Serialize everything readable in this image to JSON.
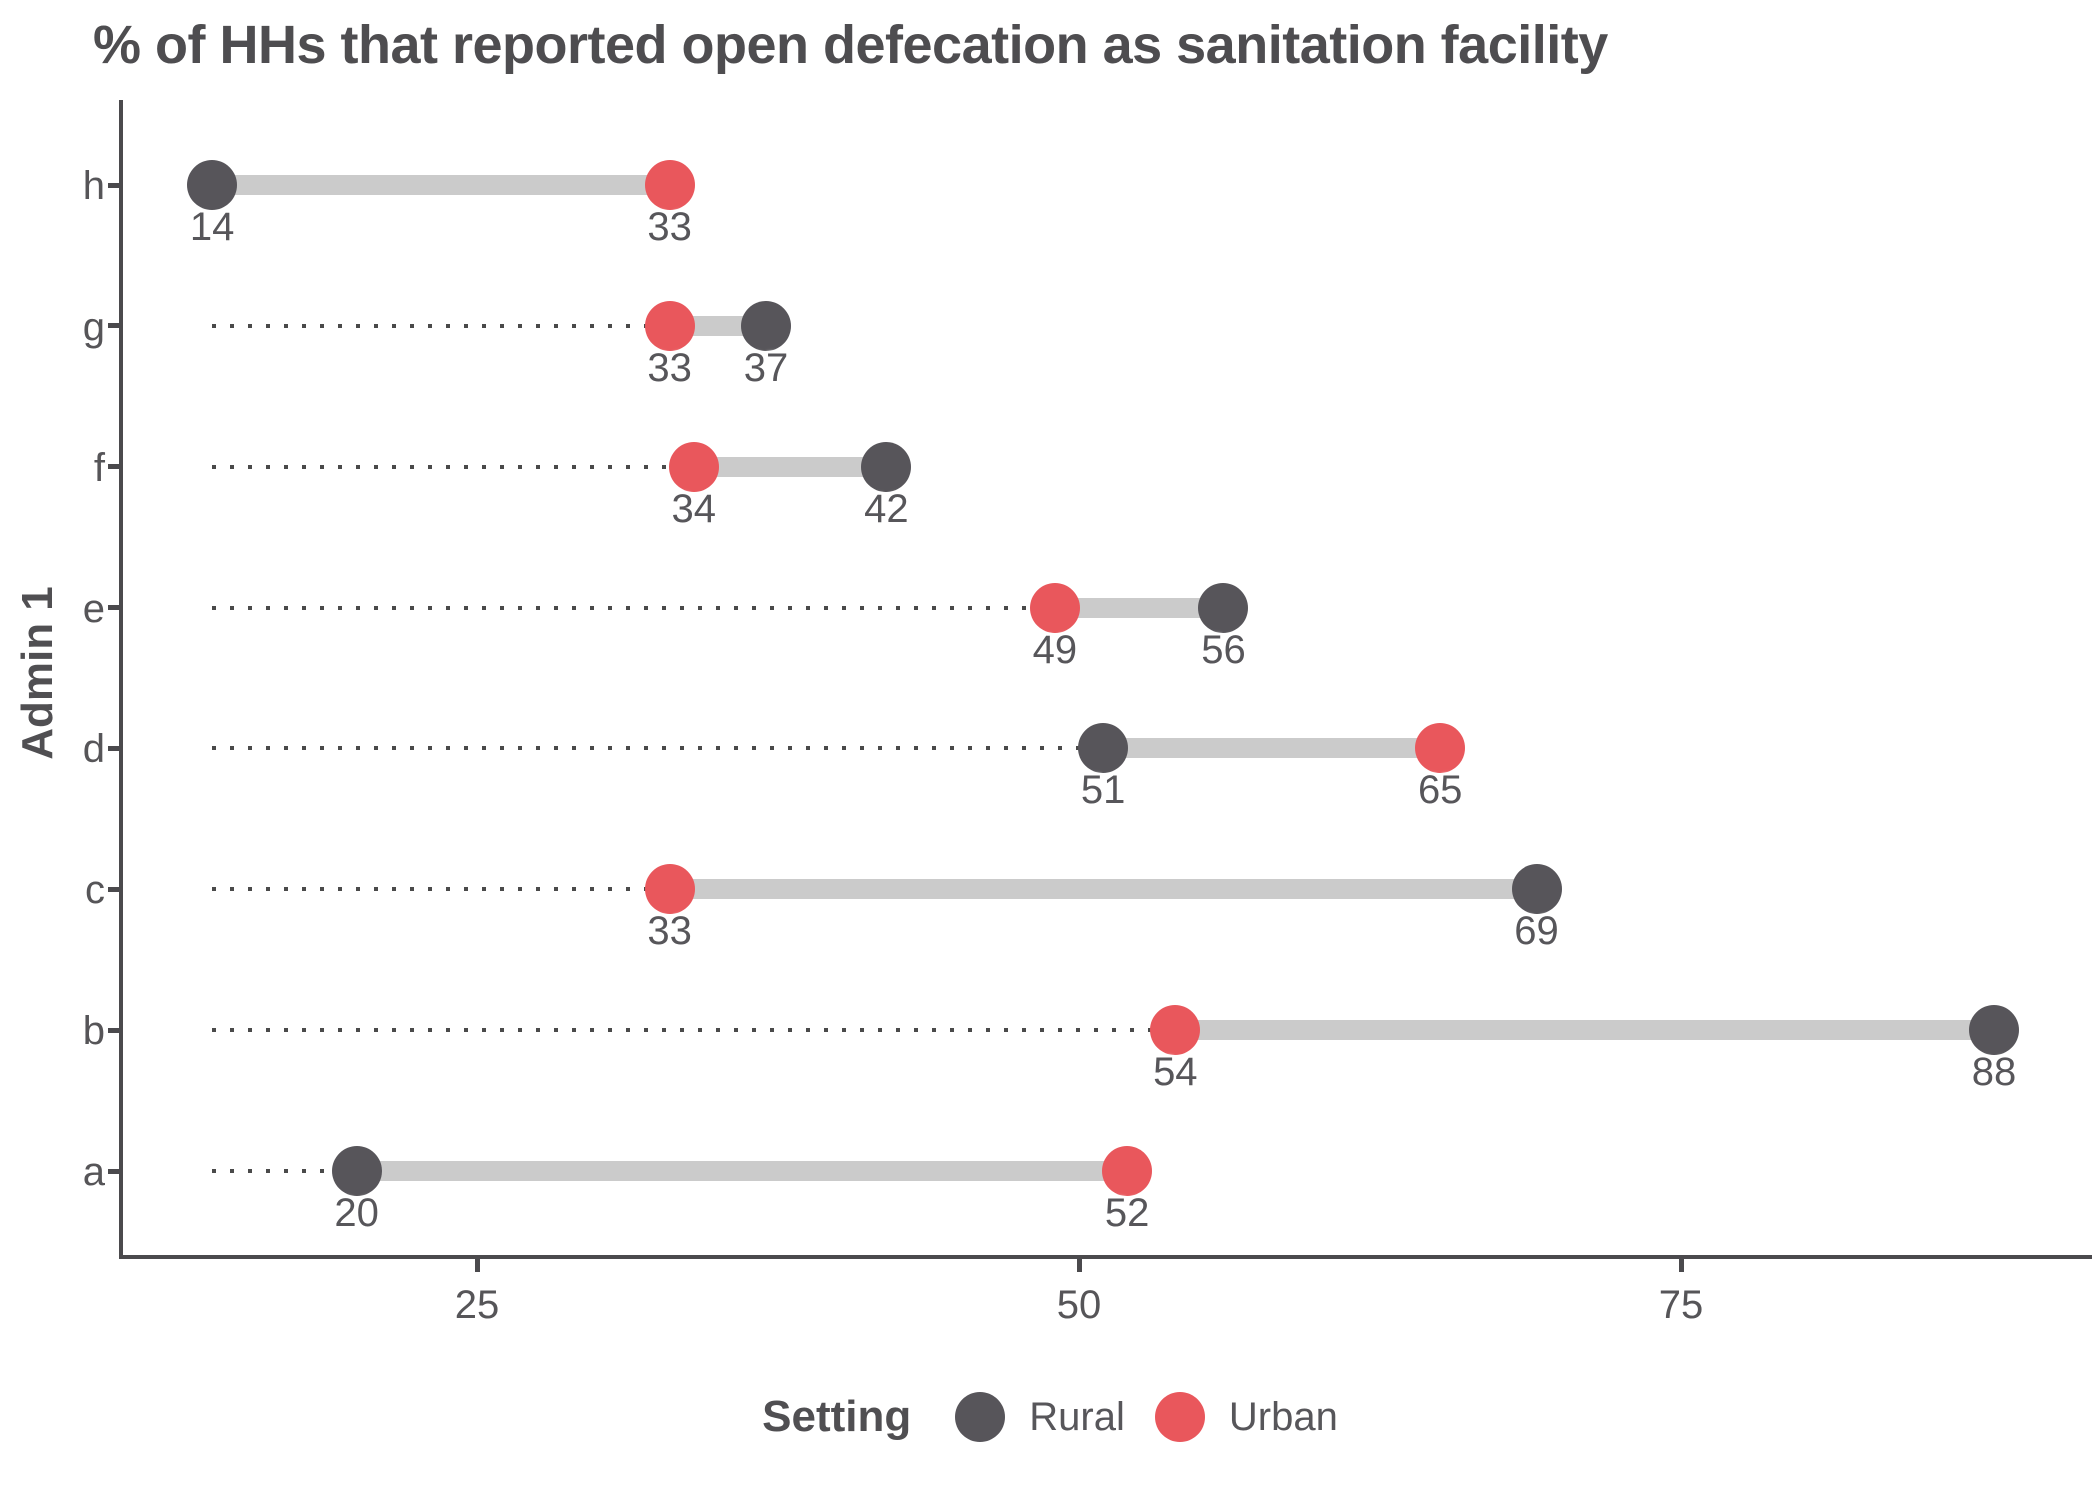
{
  "title": "% of HHs that reported open defecation as sanitation facility",
  "y_axis": {
    "title": "Admin 1"
  },
  "x_axis": {
    "tick_labels": [
      "25",
      "50",
      "75"
    ],
    "tick_values": [
      25,
      50,
      75
    ]
  },
  "legend": {
    "title": "Setting",
    "items": [
      {
        "label": "Rural",
        "color": "#57555A"
      },
      {
        "label": "Urban",
        "color": "#E9575C"
      }
    ]
  },
  "colors": {
    "rural": "#57555A",
    "urban": "#E9575C",
    "connector": "#CBCBCB",
    "leader": "#4A4A4A",
    "axis": "#4B4A4D",
    "text": "#57565A",
    "title_text": "#4E4D50"
  },
  "chart_data": {
    "type": "scatter",
    "variant": "dumbbell",
    "title": "% of HHs that reported open defecation as sanitation facility",
    "xlabel": "",
    "ylabel": "Admin 1",
    "categories": [
      "h",
      "g",
      "f",
      "e",
      "d",
      "c",
      "b",
      "a"
    ],
    "series": [
      {
        "name": "Rural",
        "color": "#57555A",
        "values": [
          14,
          37,
          42,
          56,
          51,
          69,
          88,
          20
        ]
      },
      {
        "name": "Urban",
        "color": "#E9575C",
        "values": [
          33,
          33,
          34,
          49,
          65,
          33,
          54,
          52
        ]
      }
    ],
    "point_value_labels_shown": true,
    "leader_line_start": 14,
    "xlim": [
      11,
      92
    ],
    "x_ticks": [
      25,
      50,
      75
    ],
    "grid": false,
    "legend_position": "bottom"
  }
}
